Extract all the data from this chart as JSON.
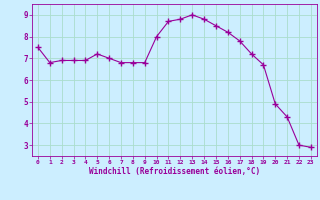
{
  "x": [
    0,
    1,
    2,
    3,
    4,
    5,
    6,
    7,
    8,
    9,
    10,
    11,
    12,
    13,
    14,
    15,
    16,
    17,
    18,
    19,
    20,
    21,
    22,
    23
  ],
  "y": [
    7.5,
    6.8,
    6.9,
    6.9,
    6.9,
    7.2,
    7.0,
    6.8,
    6.8,
    6.8,
    8.0,
    8.7,
    8.8,
    9.0,
    8.8,
    8.5,
    8.2,
    7.8,
    7.2,
    6.7,
    4.9,
    4.3,
    3.0,
    2.9
  ],
  "line_color": "#990099",
  "marker": "+",
  "marker_size": 4,
  "bg_color": "#cceeff",
  "grid_color": "#aaddcc",
  "xlabel": "Windchill (Refroidissement éolien,°C)",
  "xlabel_color": "#990099",
  "tick_color": "#990099",
  "ylim": [
    2.5,
    9.5
  ],
  "xlim": [
    -0.5,
    23.5
  ],
  "yticks": [
    3,
    4,
    5,
    6,
    7,
    8,
    9
  ],
  "xticks": [
    0,
    1,
    2,
    3,
    4,
    5,
    6,
    7,
    8,
    9,
    10,
    11,
    12,
    13,
    14,
    15,
    16,
    17,
    18,
    19,
    20,
    21,
    22,
    23
  ],
  "xtick_labels": [
    "0",
    "1",
    "2",
    "3",
    "4",
    "5",
    "6",
    "7",
    "8",
    "9",
    "10",
    "11",
    "12",
    "13",
    "14",
    "15",
    "16",
    "17",
    "18",
    "19",
    "20",
    "21",
    "22",
    "23"
  ]
}
